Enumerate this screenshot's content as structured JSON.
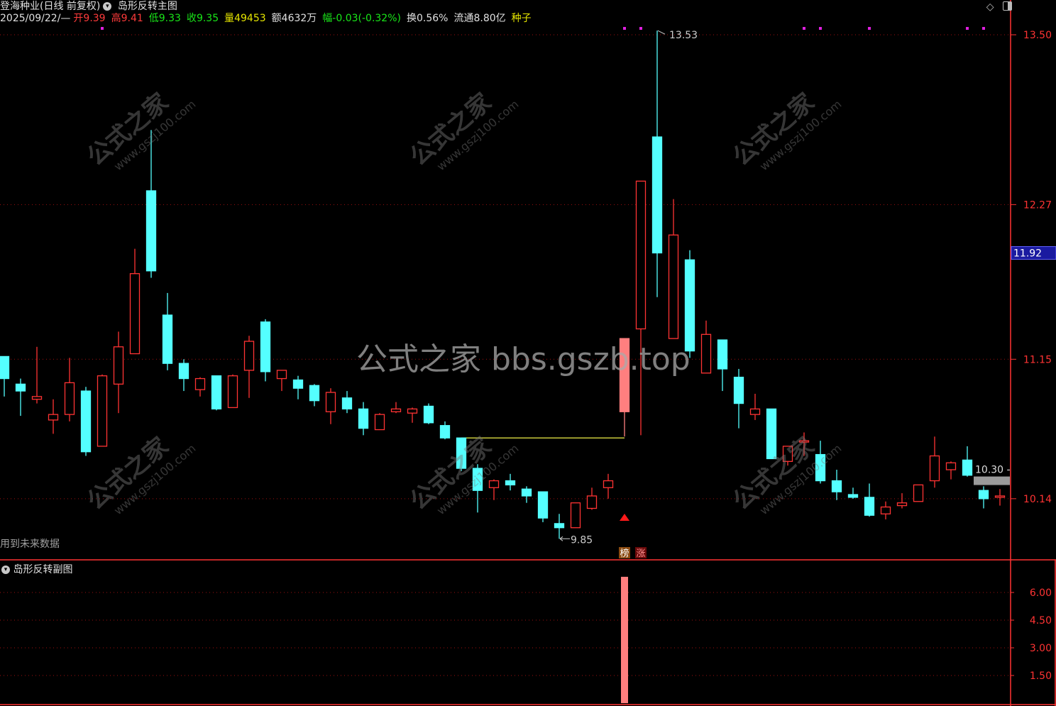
{
  "header": {
    "stock_name": "登海种业(日线 前复权)",
    "indicator_main": "岛形反转主图",
    "date": "2025/09/22/—",
    "open_label": "开",
    "open": "9.39",
    "high_label": "高",
    "high": "9.41",
    "low_label": "低",
    "low": "9.33",
    "close_label": "收",
    "close": "9.35",
    "volume_label": "量",
    "volume": "49453",
    "amount_label": "额",
    "amount": "4632万",
    "change_label": "幅",
    "change": "-0.03(-0.32%)",
    "turnover_label": "换",
    "turnover": "0.56%",
    "float_label": "流通",
    "float": "8.80亿",
    "sector": "种子"
  },
  "toolbar": {
    "diamond_icon": "diamond-icon",
    "layout_icon": "panel-toggle-icon"
  },
  "main_notes": {
    "future_data": "用到未来数据",
    "high_mark": "13.53",
    "low_mark": "9.85",
    "marker_bang": "榜",
    "marker_zhang": "涨",
    "level_label": "10.30 -",
    "current_price": "11.92"
  },
  "sub_chart": {
    "title": "岛形反转副图"
  },
  "watermark": {
    "main": "公式之家 bbs.gszb.top",
    "tile_cn": "公式之家",
    "tile_url": "www.gszj100.com"
  },
  "colors": {
    "up": "#ff3333",
    "down": "#54ffff",
    "limit_up": "#ff7f7f",
    "grid": "#8b0000",
    "axis": "#ff3333",
    "signal_dot": "#e020e0",
    "gap_line": "#c8c83c",
    "current_box": "#1a1aa0"
  },
  "chart_data": [
    {
      "type": "candlestick",
      "title": "岛形反转主图",
      "yticks": [
        "13.50",
        "12.27",
        "11.15",
        "10.14"
      ],
      "ylim": [
        9.75,
        13.73
      ],
      "grid": true,
      "ohlc": [
        [
          11.17,
          11.17,
          10.88,
          11.01
        ],
        [
          10.97,
          11.01,
          10.74,
          10.92
        ],
        [
          10.86,
          11.24,
          10.83,
          10.88
        ],
        [
          10.71,
          10.86,
          10.61,
          10.75
        ],
        [
          10.75,
          11.16,
          10.7,
          10.98
        ],
        [
          10.92,
          10.95,
          10.45,
          10.48
        ],
        [
          10.52,
          11.04,
          10.52,
          11.03
        ],
        [
          10.97,
          11.35,
          10.76,
          11.24
        ],
        [
          11.19,
          11.95,
          11.19,
          11.77
        ],
        [
          12.37,
          12.81,
          11.74,
          11.79
        ],
        [
          11.47,
          11.63,
          11.07,
          11.12
        ],
        [
          11.12,
          11.15,
          10.92,
          11.01
        ],
        [
          10.93,
          11.02,
          10.88,
          11.01
        ],
        [
          11.03,
          11.03,
          10.78,
          10.79
        ],
        [
          10.8,
          11.04,
          10.8,
          11.03
        ],
        [
          11.07,
          11.32,
          10.87,
          11.28
        ],
        [
          11.42,
          11.44,
          10.99,
          11.06
        ],
        [
          11.01,
          11.07,
          10.92,
          11.07
        ],
        [
          11.0,
          11.03,
          10.86,
          10.94
        ],
        [
          10.96,
          10.97,
          10.81,
          10.85
        ],
        [
          10.77,
          10.94,
          10.68,
          10.91
        ],
        [
          10.87,
          10.92,
          10.76,
          10.79
        ],
        [
          10.79,
          10.84,
          10.6,
          10.65
        ],
        [
          10.64,
          10.76,
          10.64,
          10.75
        ],
        [
          10.77,
          10.84,
          10.76,
          10.79
        ],
        [
          10.76,
          10.8,
          10.69,
          10.79
        ],
        [
          10.81,
          10.83,
          10.68,
          10.69
        ],
        [
          10.67,
          10.7,
          10.57,
          10.58
        ],
        [
          10.58,
          10.58,
          10.34,
          10.36
        ],
        [
          10.36,
          10.39,
          10.04,
          10.2
        ],
        [
          10.22,
          10.28,
          10.13,
          10.27
        ],
        [
          10.27,
          10.32,
          10.2,
          10.24
        ],
        [
          10.21,
          10.23,
          10.11,
          10.16
        ],
        [
          10.19,
          10.19,
          9.97,
          10.0
        ],
        [
          9.96,
          10.03,
          9.85,
          9.93
        ],
        [
          9.93,
          10.11,
          9.93,
          10.11
        ],
        [
          10.07,
          10.22,
          10.06,
          10.16
        ],
        [
          10.22,
          10.32,
          10.14,
          10.27
        ],
        [
          10.77,
          11.3,
          10.59,
          11.3
        ],
        [
          11.37,
          12.44,
          10.6,
          12.44
        ],
        [
          12.76,
          13.53,
          11.6,
          11.92
        ],
        [
          11.3,
          12.31,
          11.3,
          12.05
        ],
        [
          11.87,
          11.94,
          11.16,
          11.21
        ],
        [
          11.05,
          11.43,
          11.05,
          11.33
        ],
        [
          11.29,
          11.29,
          10.92,
          11.08
        ],
        [
          11.02,
          11.08,
          10.65,
          10.83
        ],
        [
          10.75,
          10.9,
          10.71,
          10.79
        ],
        [
          10.79,
          10.79,
          10.43,
          10.43
        ],
        [
          10.41,
          10.52,
          10.38,
          10.52
        ],
        [
          10.55,
          10.62,
          10.45,
          10.56
        ],
        [
          10.46,
          10.56,
          10.25,
          10.27
        ],
        [
          10.27,
          10.35,
          10.13,
          10.19
        ],
        [
          10.17,
          10.22,
          10.14,
          10.15
        ],
        [
          10.15,
          10.25,
          10.01,
          10.02
        ],
        [
          10.03,
          10.12,
          9.99,
          10.08
        ],
        [
          10.09,
          10.18,
          10.07,
          10.11
        ],
        [
          10.12,
          10.24,
          10.12,
          10.24
        ],
        [
          10.27,
          10.59,
          10.22,
          10.45
        ],
        [
          10.35,
          10.41,
          10.28,
          10.4
        ],
        [
          10.42,
          10.52,
          10.3,
          10.31
        ],
        [
          10.2,
          10.23,
          10.07,
          10.14
        ],
        [
          10.15,
          10.21,
          10.09,
          10.16
        ]
      ],
      "limit_up_index": 38,
      "signal_dot_indices": [
        6,
        38,
        39,
        49,
        50,
        53,
        59,
        60
      ],
      "gap_line": {
        "price": 10.58,
        "from_index": 28,
        "to_index": 38
      },
      "buy_arrow_index": 38,
      "level_bar": 10.27
    },
    {
      "type": "bar",
      "title": "岛形反转副图",
      "yticks": [
        "6.00",
        "4.50",
        "3.00",
        "1.50"
      ],
      "ylim": [
        0,
        7.1
      ],
      "bars": [
        {
          "index": 38,
          "value": 6.85
        }
      ]
    }
  ]
}
